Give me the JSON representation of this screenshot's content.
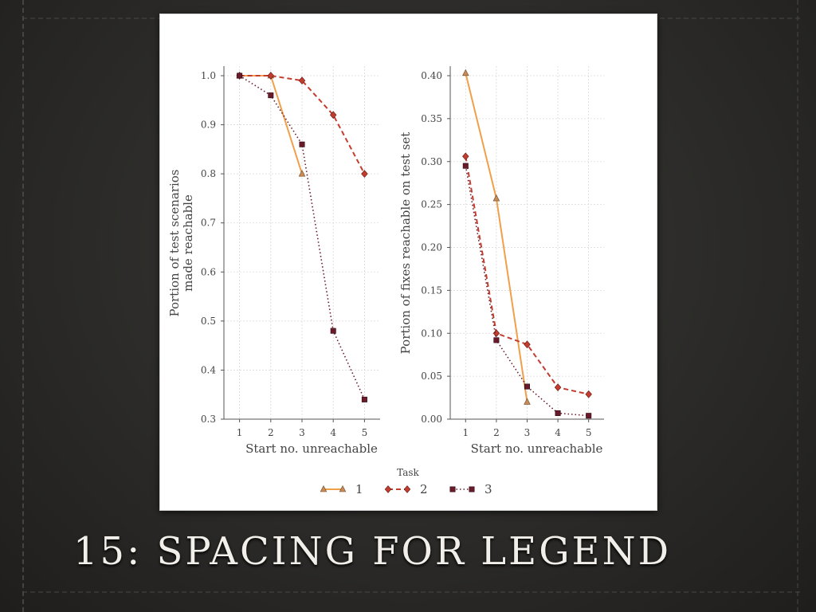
{
  "slide": {
    "title": "15: SPACING FOR LEGEND"
  },
  "colors": {
    "task1": "#f0a04b",
    "task1_marker": "#c98a55",
    "task2": "#c43c2e",
    "task3": "#6b1a2a",
    "grid": "#d9d9d9"
  },
  "legend": {
    "title": "Task",
    "placement": "bottom-center",
    "items": [
      {
        "label": "1",
        "marker": "triangle",
        "line": "solid"
      },
      {
        "label": "2",
        "marker": "diamond",
        "line": "dashed"
      },
      {
        "label": "3",
        "marker": "square",
        "line": "dotted"
      }
    ]
  },
  "chart_data": [
    {
      "type": "line",
      "xlabel": "Start no. unreachable",
      "ylabel": [
        "Portion of test scenarios",
        "made reachable"
      ],
      "x": [
        1,
        2,
        3,
        4,
        5
      ],
      "xticks": [
        "1",
        "2",
        "3",
        "4",
        "5"
      ],
      "ylim": [
        0.3,
        1.0
      ],
      "yticks": [
        "0.3",
        "0.4",
        "0.5",
        "0.6",
        "0.7",
        "0.8",
        "0.9",
        "1.0"
      ],
      "grid": true,
      "series": [
        {
          "name": "1",
          "x": [
            1,
            2,
            3
          ],
          "values": [
            1.0,
            1.0,
            0.8
          ]
        },
        {
          "name": "2",
          "x": [
            1,
            2,
            3,
            4,
            5
          ],
          "values": [
            1.0,
            1.0,
            0.99,
            0.92,
            0.8
          ]
        },
        {
          "name": "3",
          "x": [
            1,
            2,
            3,
            4,
            5
          ],
          "values": [
            1.0,
            0.96,
            0.86,
            0.48,
            0.34
          ]
        }
      ]
    },
    {
      "type": "line",
      "xlabel": "Start no. unreachable",
      "ylabel": [
        "Portion of fixes reachable on test set"
      ],
      "x": [
        1,
        2,
        3,
        4,
        5
      ],
      "xticks": [
        "1",
        "2",
        "3",
        "4",
        "5"
      ],
      "ylim": [
        0.0,
        0.4
      ],
      "yticks": [
        "0.00",
        "0.05",
        "0.10",
        "0.15",
        "0.20",
        "0.25",
        "0.30",
        "0.35",
        "0.40"
      ],
      "grid": true,
      "series": [
        {
          "name": "1",
          "x": [
            1,
            2,
            3
          ],
          "values": [
            0.403,
            0.257,
            0.02
          ]
        },
        {
          "name": "2",
          "x": [
            1,
            2,
            3,
            4,
            5
          ],
          "values": [
            0.306,
            0.1,
            0.087,
            0.037,
            0.029
          ]
        },
        {
          "name": "3",
          "x": [
            1,
            2,
            3,
            4,
            5
          ],
          "values": [
            0.295,
            0.092,
            0.038,
            0.007,
            0.004
          ]
        }
      ]
    }
  ]
}
